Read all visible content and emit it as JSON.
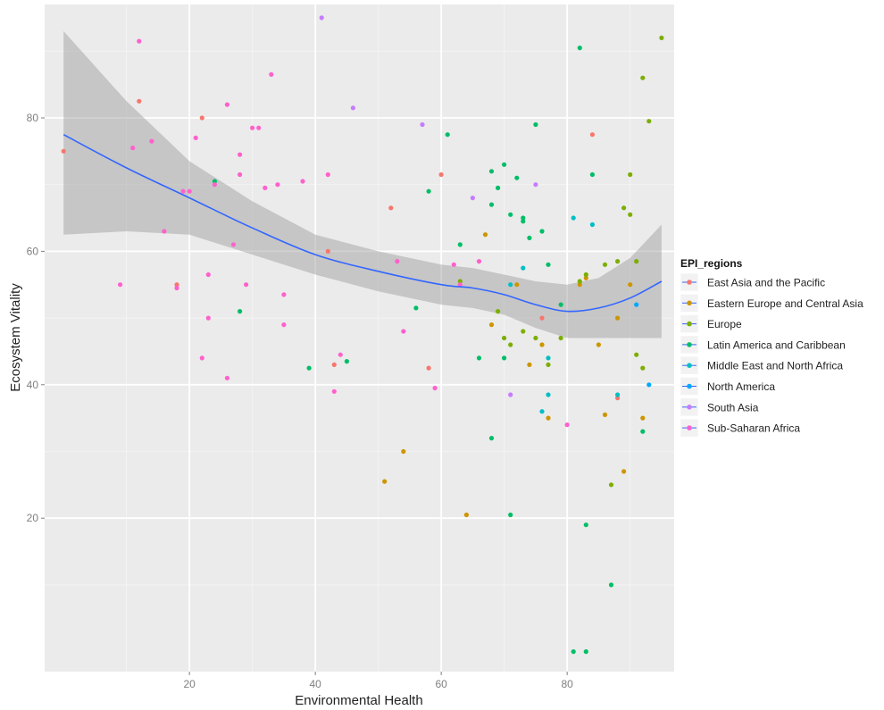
{
  "chart_data": {
    "type": "scatter",
    "title": "",
    "xlabel": "Environmental Health",
    "ylabel": "Ecosystem Vitality",
    "xlim": [
      -3,
      97
    ],
    "ylim": [
      -3,
      97
    ],
    "x_ticks": [
      20,
      40,
      60,
      80
    ],
    "y_ticks": [
      20,
      40,
      60,
      80
    ],
    "grid": true,
    "legend": {
      "title": "EPI_regions",
      "position": "right",
      "entries": [
        {
          "name": "East Asia and the Pacific",
          "color": "#F8766D"
        },
        {
          "name": "Eastern Europe and Central Asia",
          "color": "#CD9600"
        },
        {
          "name": "Europe",
          "color": "#7CAE00"
        },
        {
          "name": "Latin America and Caribbean",
          "color": "#00BE67"
        },
        {
          "name": "Middle East and North Africa",
          "color": "#00BFC4"
        },
        {
          "name": "North America",
          "color": "#00A9FF"
        },
        {
          "name": "South Asia",
          "color": "#C77CFF"
        },
        {
          "name": "Sub-Saharan Africa",
          "color": "#FF61CC"
        }
      ]
    },
    "smooth": {
      "color": "#3366FF",
      "band_color": "#999999",
      "x": [
        0,
        10,
        20,
        30,
        40,
        50,
        60,
        65,
        70,
        75,
        80,
        85,
        90,
        95
      ],
      "y": [
        77.5,
        72.5,
        68,
        63.5,
        59.5,
        57,
        55,
        54.5,
        53.5,
        52,
        51,
        51.5,
        53,
        55.5
      ],
      "lower": [
        62.5,
        63,
        62.5,
        59.5,
        56.5,
        54,
        52,
        51.5,
        50.5,
        48.5,
        47,
        47,
        47,
        47
      ],
      "upper": [
        93,
        82.5,
        73.5,
        67.5,
        62.5,
        60,
        58,
        57.5,
        56.5,
        55.5,
        55,
        56,
        59,
        64
      ]
    },
    "series": [
      {
        "name": "East Asia and the Pacific",
        "color": "#F8766D",
        "points": [
          [
            0,
            75
          ],
          [
            12,
            82.5
          ],
          [
            22,
            80
          ],
          [
            18,
            55
          ],
          [
            42,
            60
          ],
          [
            43,
            43
          ],
          [
            58,
            42.5
          ],
          [
            60,
            71.5
          ],
          [
            88,
            38
          ],
          [
            84,
            77.5
          ],
          [
            76,
            50
          ],
          [
            52,
            66.5
          ]
        ]
      },
      {
        "name": "Eastern Europe and Central Asia",
        "color": "#CD9600",
        "points": [
          [
            51,
            25.5
          ],
          [
            54,
            30
          ],
          [
            64,
            20.5
          ],
          [
            67,
            62.5
          ],
          [
            68,
            49
          ],
          [
            72,
            55
          ],
          [
            74,
            43
          ],
          [
            76,
            46
          ],
          [
            77,
            35
          ],
          [
            82,
            55
          ],
          [
            83,
            56
          ],
          [
            85,
            46
          ],
          [
            86,
            35.5
          ],
          [
            88,
            50
          ],
          [
            89,
            27
          ],
          [
            90,
            55
          ],
          [
            92,
            35
          ]
        ]
      },
      {
        "name": "Europe",
        "color": "#7CAE00",
        "points": [
          [
            63,
            55.5
          ],
          [
            69,
            51
          ],
          [
            70,
            47
          ],
          [
            71,
            46
          ],
          [
            73,
            48
          ],
          [
            75,
            47
          ],
          [
            77,
            43
          ],
          [
            79,
            47
          ],
          [
            82,
            55.5
          ],
          [
            83,
            56.5
          ],
          [
            86,
            58
          ],
          [
            87,
            25
          ],
          [
            88,
            58.5
          ],
          [
            89,
            66.5
          ],
          [
            90,
            65.5
          ],
          [
            90,
            71.5
          ],
          [
            91,
            58.5
          ],
          [
            92,
            86
          ],
          [
            93,
            79.5
          ],
          [
            95,
            92
          ],
          [
            91,
            44.5
          ],
          [
            92,
            42.5
          ]
        ]
      },
      {
        "name": "Latin America and Caribbean",
        "color": "#00BE67",
        "points": [
          [
            24,
            70.5
          ],
          [
            28,
            51
          ],
          [
            39,
            42.5
          ],
          [
            45,
            43.5
          ],
          [
            56,
            51.5
          ],
          [
            58,
            69
          ],
          [
            61,
            77.5
          ],
          [
            63,
            61
          ],
          [
            66,
            44
          ],
          [
            68,
            67
          ],
          [
            68,
            72
          ],
          [
            69,
            69.5
          ],
          [
            70,
            73
          ],
          [
            71,
            65.5
          ],
          [
            72,
            71
          ],
          [
            73,
            65
          ],
          [
            73,
            64.5
          ],
          [
            74,
            62
          ],
          [
            75,
            79
          ],
          [
            76,
            63
          ],
          [
            77,
            58
          ],
          [
            79,
            52
          ],
          [
            81,
            0
          ],
          [
            83,
            0
          ],
          [
            82,
            90.5
          ],
          [
            84,
            71.5
          ],
          [
            83,
            19
          ],
          [
            87,
            10
          ],
          [
            92,
            33
          ],
          [
            71,
            20.5
          ],
          [
            68,
            32
          ],
          [
            70,
            44
          ]
        ]
      },
      {
        "name": "Middle East and North Africa",
        "color": "#00BFC4",
        "points": [
          [
            71,
            55
          ],
          [
            73,
            57.5
          ],
          [
            77,
            44
          ],
          [
            77,
            38.5
          ],
          [
            76,
            36
          ],
          [
            81,
            65
          ],
          [
            84,
            64
          ],
          [
            88,
            38.5
          ]
        ]
      },
      {
        "name": "North America",
        "color": "#00A9FF",
        "points": [
          [
            93,
            40
          ],
          [
            91,
            52
          ]
        ]
      },
      {
        "name": "South Asia",
        "color": "#C77CFF",
        "points": [
          [
            41,
            95
          ],
          [
            46,
            81.5
          ],
          [
            57,
            79
          ],
          [
            65,
            68
          ],
          [
            71,
            38.5
          ],
          [
            75,
            70
          ]
        ]
      },
      {
        "name": "Sub-Saharan Africa",
        "color": "#FF61CC",
        "points": [
          [
            9,
            55
          ],
          [
            11,
            75.5
          ],
          [
            12,
            91.5
          ],
          [
            14,
            76.5
          ],
          [
            16,
            63
          ],
          [
            18,
            54.5
          ],
          [
            19,
            69
          ],
          [
            20,
            69
          ],
          [
            21,
            77
          ],
          [
            22,
            44
          ],
          [
            23,
            56.5
          ],
          [
            23,
            50
          ],
          [
            24,
            70
          ],
          [
            26,
            82
          ],
          [
            27,
            61
          ],
          [
            28,
            74.5
          ],
          [
            28,
            71.5
          ],
          [
            29,
            55
          ],
          [
            30,
            78.5
          ],
          [
            31,
            78.5
          ],
          [
            32,
            69.5
          ],
          [
            33,
            86.5
          ],
          [
            34,
            70
          ],
          [
            35,
            49
          ],
          [
            35,
            53.5
          ],
          [
            38,
            70.5
          ],
          [
            42,
            71.5
          ],
          [
            43,
            39
          ],
          [
            44,
            44.5
          ],
          [
            53,
            58.5
          ],
          [
            54,
            48
          ],
          [
            59,
            39.5
          ],
          [
            63,
            55
          ],
          [
            66,
            58.5
          ],
          [
            80,
            34
          ],
          [
            26,
            41
          ],
          [
            62,
            58
          ]
        ]
      }
    ]
  }
}
